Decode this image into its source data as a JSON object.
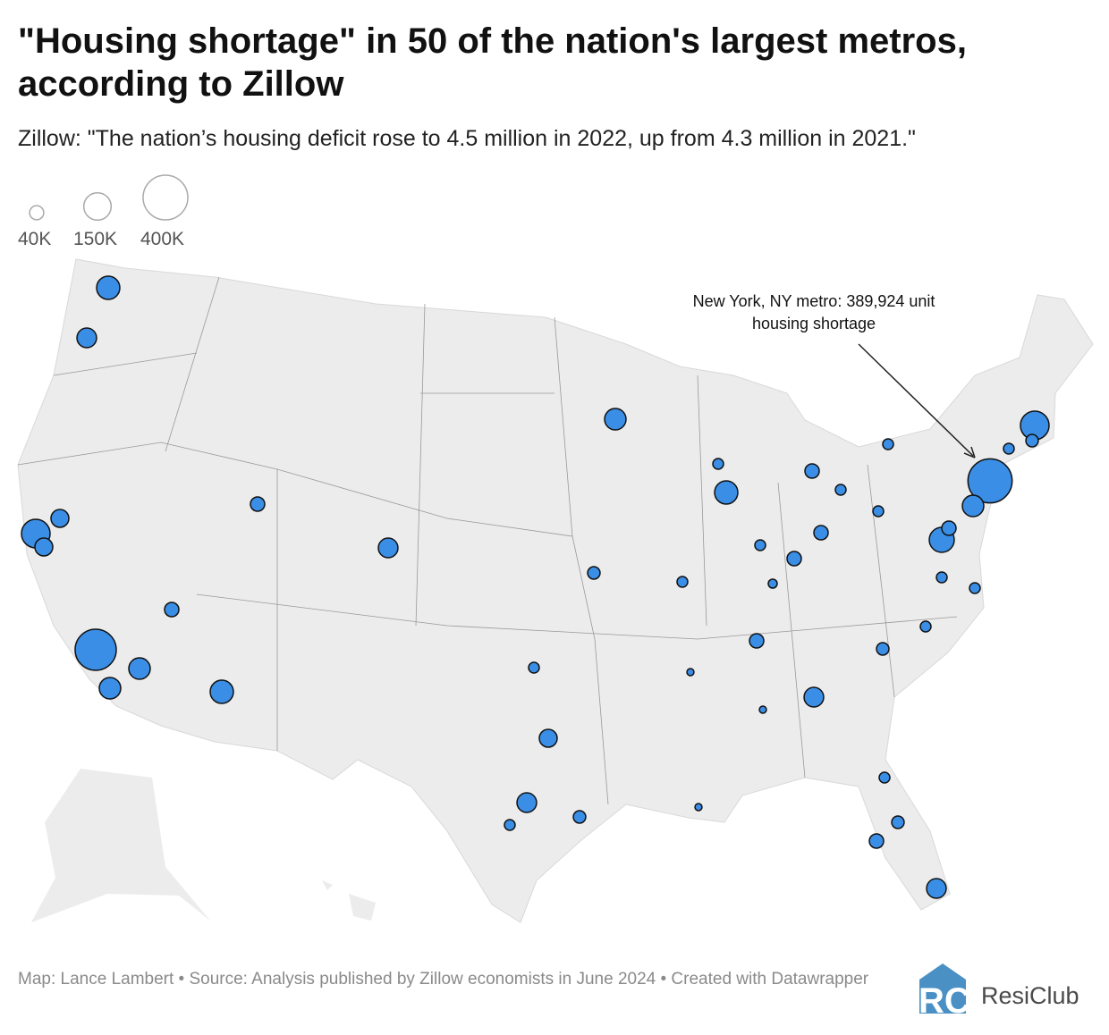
{
  "title": "\"Housing shortage\" in 50 of the nation's largest metros, according to Zillow",
  "subtitle": "Zillow: \"The nation’s housing deficit rose to 4.5 million in 2022, up from 4.3 million in 2021.\"",
  "legend": {
    "items": [
      {
        "label": "40K",
        "value": 40000
      },
      {
        "label": "150K",
        "value": 150000
      },
      {
        "label": "400K",
        "value": 400000
      }
    ]
  },
  "annotation": {
    "line1": "New York, NY metro: 389,924 unit",
    "line2": "housing shortage"
  },
  "footer": "Map: Lance Lambert • Source: Analysis published by Zillow economists in June 2024 • Created with Datawrapper",
  "logo": {
    "text": "ResiClub",
    "mark": "RC"
  },
  "colors": {
    "bubble": "#3a8ee6",
    "land": "#ececec",
    "border": "#999999",
    "logo": "#4a90c4"
  },
  "chart_data": {
    "type": "bubble-map",
    "markers": [
      108000,
      77000,
      164000,
      64000,
      64000,
      339000,
      92000,
      92000,
      41000,
      108000,
      41000,
      77000,
      92000,
      23000,
      108000,
      41000,
      23000,
      23000,
      23000,
      41000,
      23000,
      41000,
      16000,
      23000,
      31000,
      41000,
      10000,
      10000,
      77000,
      31000,
      23000,
      23000,
      23000,
      125000,
      41000,
      92000,
      389924,
      164000,
      31000,
      23000,
      23000,
      64000,
      77000,
      23000,
      31000,
      10000,
      23000,
      31000,
      41000,
      77000
    ]
  }
}
